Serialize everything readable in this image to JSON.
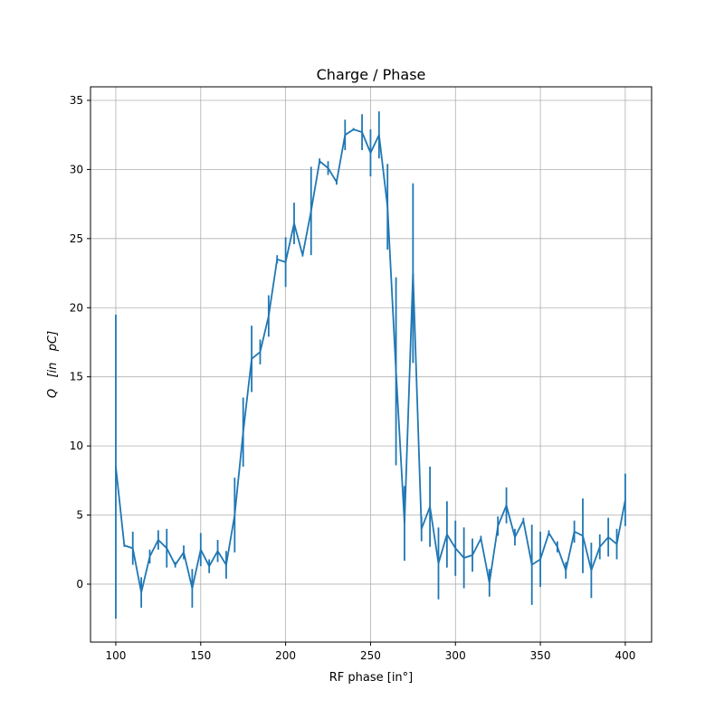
{
  "chart_data": {
    "type": "line",
    "title": "Charge / Phase",
    "xlabel": "RF phase [in°]",
    "ylabel": "Q   [in   pC]",
    "xlim": [
      85.1,
      415.5
    ],
    "ylim": [
      -4.19,
      35.98
    ],
    "grid": true,
    "color": "#1f77b4",
    "xticks": [
      100,
      150,
      200,
      250,
      300,
      350,
      400
    ],
    "yticks": [
      0,
      5,
      10,
      15,
      20,
      25,
      30,
      35
    ],
    "x": [
      100,
      105,
      110,
      115,
      120,
      125,
      130,
      135,
      140,
      145,
      150,
      155,
      160,
      165,
      170,
      175,
      180,
      185,
      190,
      195,
      200,
      205,
      210,
      215,
      220,
      225,
      230,
      235,
      240,
      245,
      250,
      255,
      260,
      265,
      270,
      275,
      280,
      285,
      290,
      295,
      300,
      305,
      310,
      315,
      320,
      325,
      330,
      335,
      340,
      345,
      350,
      355,
      360,
      365,
      370,
      375,
      380,
      385,
      390,
      395,
      400
    ],
    "y": [
      8.5,
      2.8,
      2.6,
      -0.6,
      2.0,
      3.2,
      2.6,
      1.4,
      2.3,
      -0.3,
      2.5,
      1.3,
      2.4,
      1.4,
      5.0,
      11.0,
      16.3,
      16.8,
      19.4,
      23.5,
      23.3,
      26.1,
      23.8,
      27.0,
      30.6,
      30.1,
      29.1,
      32.5,
      32.9,
      32.7,
      31.2,
      32.5,
      27.3,
      15.4,
      4.4,
      22.5,
      4.0,
      5.6,
      1.5,
      3.6,
      2.6,
      1.9,
      2.1,
      3.3,
      0.1,
      4.2,
      5.7,
      3.4,
      4.6,
      1.4,
      1.8,
      3.7,
      2.7,
      1.0,
      3.8,
      3.5,
      1.0,
      2.7,
      3.4,
      2.9,
      6.1
    ],
    "yerr": [
      11,
      0.1,
      1.2,
      1.1,
      0.5,
      0.7,
      1.4,
      0.2,
      0.5,
      1.4,
      1.2,
      0.5,
      0.8,
      1.0,
      2.7,
      2.5,
      2.4,
      0.9,
      1.5,
      0.3,
      1.8,
      1.5,
      0.1,
      3.2,
      0.2,
      0.5,
      0.2,
      1.1,
      0.1,
      1.3,
      1.7,
      1.7,
      3.1,
      6.8,
      2.7,
      6.5,
      0.9,
      2.9,
      2.6,
      2.4,
      2.0,
      2.2,
      1.2,
      0.2,
      1.0,
      0.7,
      1.3,
      0.6,
      0.2,
      2.9,
      2.0,
      0.2,
      0.4,
      0.6,
      0.8,
      2.7,
      2.0,
      0.9,
      1.4,
      1.1,
      1.9
    ]
  }
}
